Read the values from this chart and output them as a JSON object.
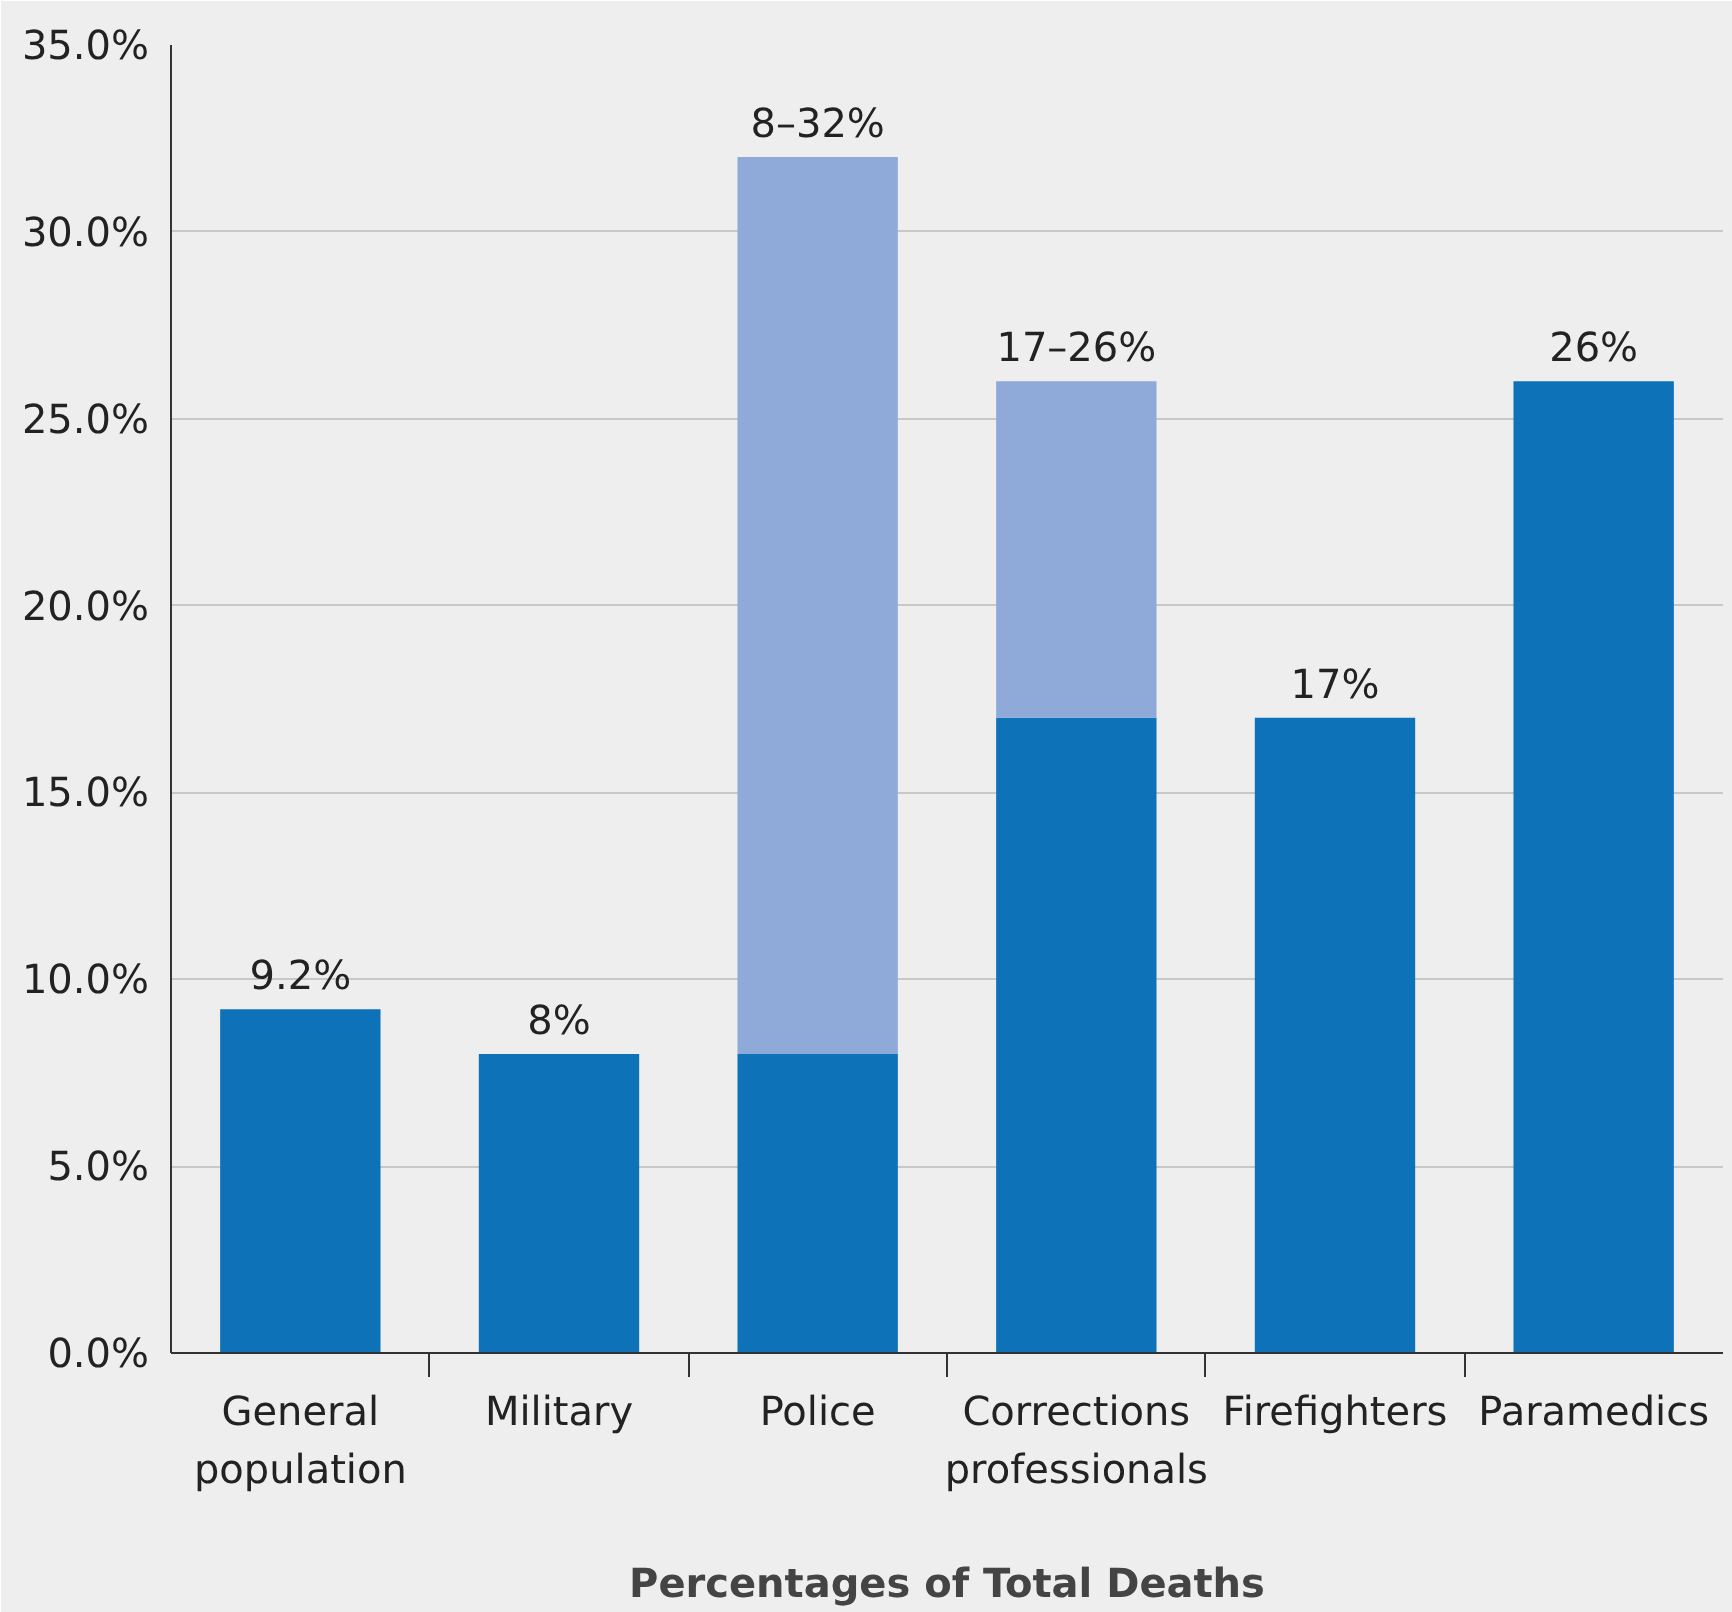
{
  "chart_data": {
    "type": "bar",
    "xlabel": "Percentages of Total Deaths",
    "categories": [
      "General\npopulation",
      "Military",
      "Police",
      "Corrections\nprofessionals",
      "Firefighters",
      "Paramedics"
    ],
    "series": [
      {
        "color": "#0e72b9",
        "values": [
          9.2,
          8,
          8,
          17,
          17,
          26
        ]
      },
      {
        "color": "#8faad9",
        "values": [
          null,
          null,
          24,
          9,
          null,
          null
        ]
      }
    ],
    "stacked": true,
    "totals": [
      "9.2%",
      "8%",
      "8–32%",
      "17–26%",
      "17%",
      "26%"
    ],
    "ylim": [
      0,
      35
    ],
    "yticks": [
      {
        "value": 0,
        "label": "0.0%"
      },
      {
        "value": 5,
        "label": "5.0%"
      },
      {
        "value": 10,
        "label": "10.0%"
      },
      {
        "value": 15,
        "label": "15.0%"
      },
      {
        "value": 20,
        "label": "20.0%"
      },
      {
        "value": 25,
        "label": "25.0%"
      },
      {
        "value": 30,
        "label": "30.0%"
      },
      {
        "value": 35,
        "label": "35.0%"
      }
    ],
    "grid": "y"
  }
}
